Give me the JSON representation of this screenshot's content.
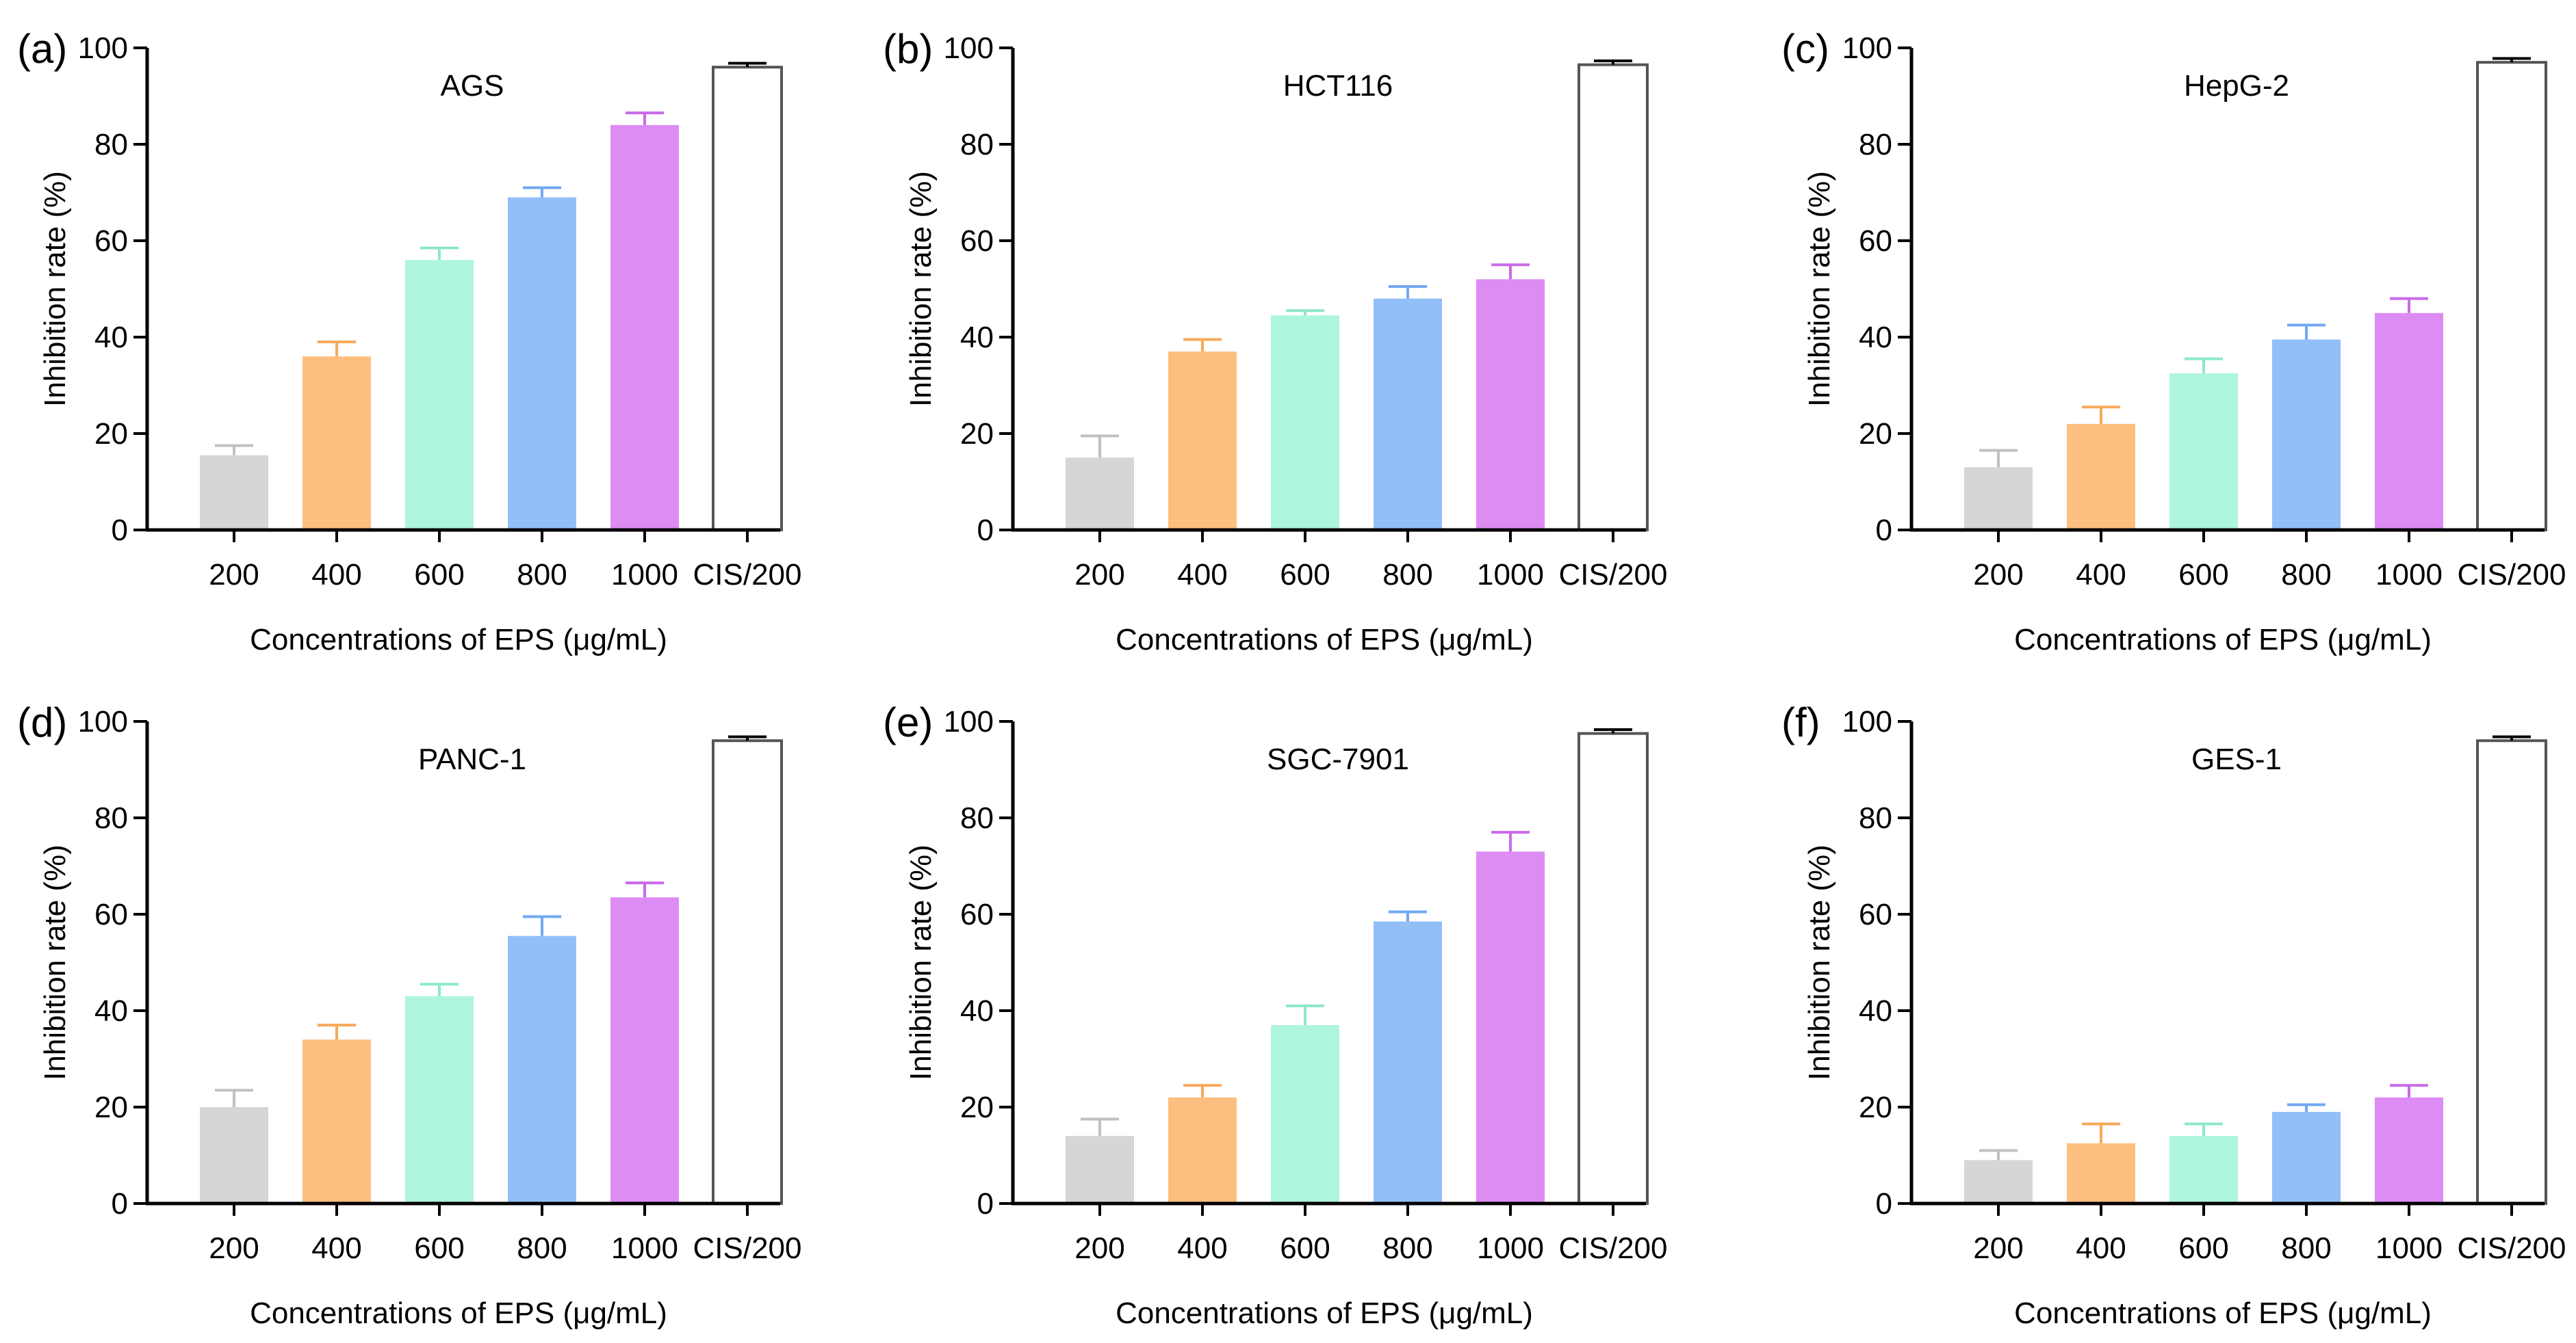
{
  "chart_data": [
    {
      "type": "bar",
      "panel": "(a)",
      "title": "AGS",
      "categories": [
        "200",
        "400",
        "600",
        "800",
        "1000",
        "CIS/200"
      ],
      "values": [
        15.5,
        36,
        56,
        69,
        84,
        96
      ],
      "errors": [
        2,
        3,
        2.5,
        2,
        2.5,
        0.8
      ],
      "xlabel": "Concentrations of EPS (μg/mL)",
      "ylabel": "Inhibition rate (%)",
      "ylim": [
        0,
        100
      ],
      "yticks": [
        "0",
        "20",
        "40",
        "60",
        "80",
        "100"
      ]
    },
    {
      "type": "bar",
      "panel": "(b)",
      "title": "HCT116",
      "categories": [
        "200",
        "400",
        "600",
        "800",
        "1000",
        "CIS/200"
      ],
      "values": [
        15,
        37,
        44.5,
        48,
        52,
        96.5
      ],
      "errors": [
        4.5,
        2.5,
        1,
        2.5,
        3,
        0.8
      ],
      "xlabel": "Concentrations of EPS (μg/mL)",
      "ylabel": "Inhibition rate (%)",
      "ylim": [
        0,
        100
      ],
      "yticks": [
        "0",
        "20",
        "40",
        "60",
        "80",
        "100"
      ]
    },
    {
      "type": "bar",
      "panel": "(c)",
      "title": "HepG-2",
      "categories": [
        "200",
        "400",
        "600",
        "800",
        "1000",
        "CIS/200"
      ],
      "values": [
        13,
        22,
        32.5,
        39.5,
        45,
        97
      ],
      "errors": [
        3.5,
        3.5,
        3,
        3,
        3,
        0.8
      ],
      "xlabel": "Concentrations of EPS (μg/mL)",
      "ylabel": "Inhibition rate (%)",
      "ylim": [
        0,
        100
      ],
      "yticks": [
        "0",
        "20",
        "40",
        "60",
        "80",
        "100"
      ]
    },
    {
      "type": "bar",
      "panel": "(d)",
      "title": "PANC-1",
      "categories": [
        "200",
        "400",
        "600",
        "800",
        "1000",
        "CIS/200"
      ],
      "values": [
        20,
        34,
        43,
        55.5,
        63.5,
        96
      ],
      "errors": [
        3.5,
        3,
        2.5,
        4,
        3,
        0.8
      ],
      "xlabel": "Concentrations of EPS (μg/mL)",
      "ylabel": "Inhibition rate (%)",
      "ylim": [
        0,
        100
      ],
      "yticks": [
        "0",
        "20",
        "40",
        "60",
        "80",
        "100"
      ]
    },
    {
      "type": "bar",
      "panel": "(e)",
      "title": "SGC-7901",
      "categories": [
        "200",
        "400",
        "600",
        "800",
        "1000",
        "CIS/200"
      ],
      "values": [
        14,
        22,
        37,
        58.5,
        73,
        97.5
      ],
      "errors": [
        3.5,
        2.5,
        4,
        2,
        4,
        0.8
      ],
      "xlabel": "Concentrations of EPS (μg/mL)",
      "ylabel": "Inhibition rate (%)",
      "ylim": [
        0,
        100
      ],
      "yticks": [
        "0",
        "20",
        "40",
        "60",
        "80",
        "100"
      ]
    },
    {
      "type": "bar",
      "panel": "(f)",
      "title": "GES-1",
      "categories": [
        "200",
        "400",
        "600",
        "800",
        "1000",
        "CIS/200"
      ],
      "values": [
        9,
        12.5,
        14,
        19,
        22,
        96
      ],
      "errors": [
        2,
        4,
        2.5,
        1.5,
        2.5,
        0.8
      ],
      "xlabel": "Concentrations of EPS (μg/mL)",
      "ylabel": "Inhibition rate (%)",
      "ylim": [
        0,
        100
      ],
      "yticks": [
        "0",
        "20",
        "40",
        "60",
        "80",
        "100"
      ]
    }
  ],
  "colors": {
    "bars": [
      "#d6d6d6",
      "#fdbf7f",
      "#adf5df",
      "#93bff8",
      "#dd8cf3",
      "#ffffff"
    ],
    "errorbars": [
      "#c0c0c0",
      "#f7a95a",
      "#8ce8cc",
      "#73a8f2",
      "#c96ae8",
      "#000000"
    ],
    "outline_last": "#555555",
    "axis": "#000000"
  }
}
